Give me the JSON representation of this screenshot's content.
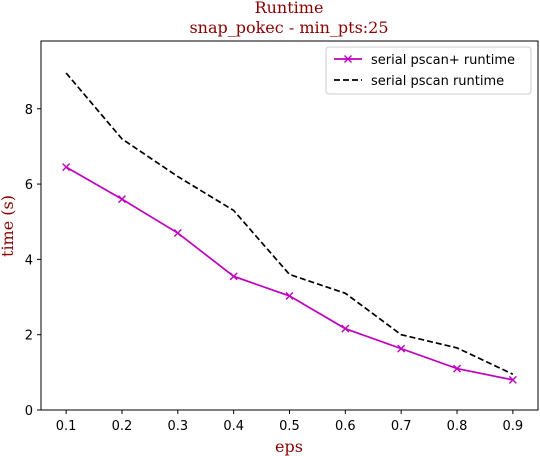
{
  "chart_data": {
    "type": "line",
    "title": "Runtime",
    "subtitle": "snap_pokec - min_pts:25",
    "xlabel": "eps",
    "ylabel": "time (s)",
    "x": [
      0.1,
      0.2,
      0.3,
      0.4,
      0.5,
      0.6,
      0.7,
      0.8,
      0.9
    ],
    "x_tick_labels": [
      "0.1",
      "0.2",
      "0.3",
      "0.4",
      "0.5",
      "0.6",
      "0.7",
      "0.8",
      "0.9"
    ],
    "y_tick_labels": [
      "0",
      "2",
      "4",
      "6",
      "8"
    ],
    "y_ticks": [
      0,
      2,
      4,
      6,
      8
    ],
    "xlim": [
      0.055,
      0.945
    ],
    "ylim": [
      0,
      9.8
    ],
    "grid": false,
    "legend_position": "top-right",
    "series": [
      {
        "name": "serial pscan+ runtime",
        "values": [
          6.45,
          5.6,
          4.7,
          3.55,
          3.03,
          2.16,
          1.63,
          1.1,
          0.8
        ],
        "color": "#bf00bf",
        "line_style": "solid",
        "marker": "x"
      },
      {
        "name": "serial pscan runtime",
        "values": [
          8.95,
          7.2,
          6.2,
          5.3,
          3.6,
          3.1,
          2.0,
          1.65,
          0.95
        ],
        "color": "#000000",
        "line_style": "dashed",
        "marker": "none"
      }
    ],
    "title_color": "#8b0000",
    "label_color": "#8b0000"
  }
}
